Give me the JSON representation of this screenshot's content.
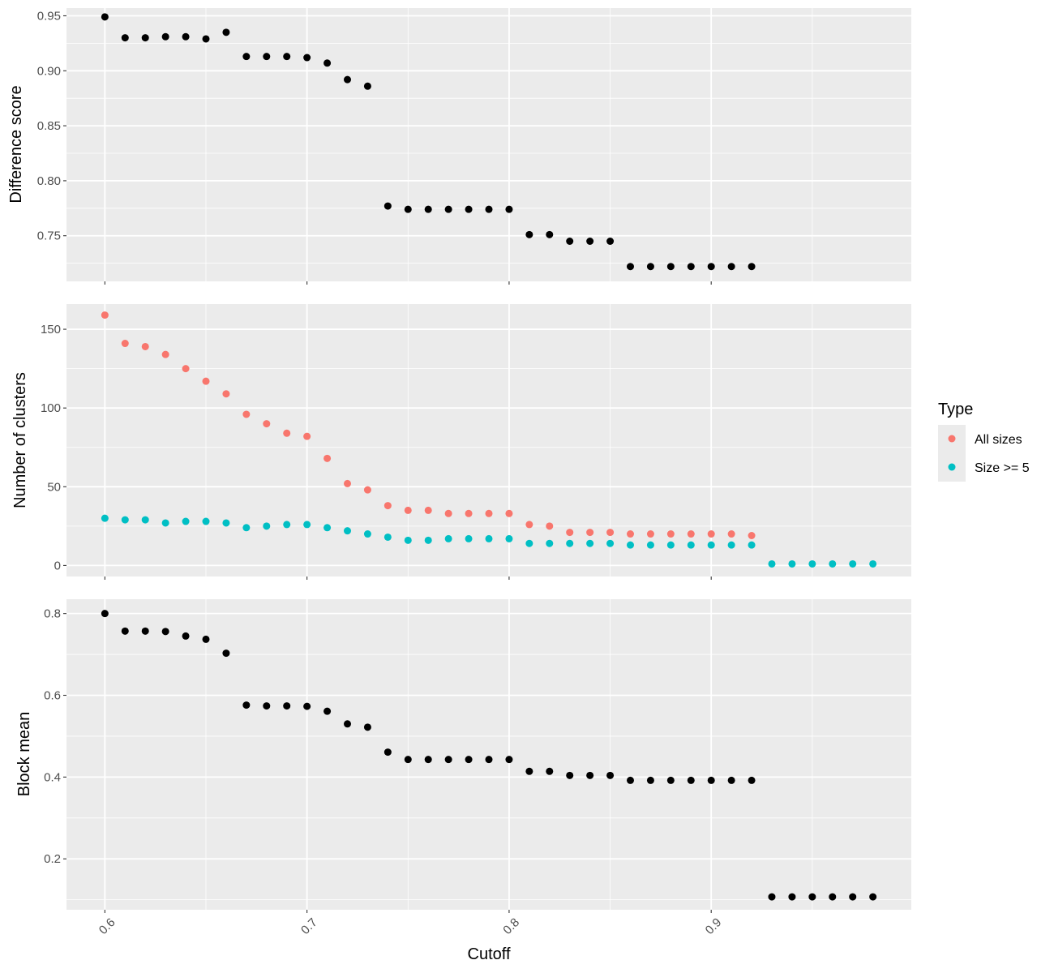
{
  "chart_data": {
    "type": "scatter",
    "xlabel": "Cutoff",
    "x_ticks": [
      "0.6",
      "0.7",
      "0.8",
      "0.9"
    ],
    "xlim": [
      0.581,
      0.999
    ],
    "grid": true,
    "legend": {
      "title": "Type",
      "placement": "right",
      "entries": [
        {
          "label": "All sizes",
          "color": "#F8766D"
        },
        {
          "label": "Size >= 5",
          "color": "#00BFC4"
        }
      ]
    },
    "panels": [
      {
        "ylabel": "Difference score",
        "ylim": [
          0.7085,
          0.957
        ],
        "y_ticks": [
          "0.75",
          "0.80",
          "0.85",
          "0.90",
          "0.95"
        ],
        "series": [
          {
            "color": "#000000",
            "x": [
              0.6,
              0.61,
              0.62,
              0.63,
              0.64,
              0.65,
              0.66,
              0.67,
              0.68,
              0.69,
              0.7,
              0.71,
              0.72,
              0.73,
              0.74,
              0.75,
              0.76,
              0.77,
              0.78,
              0.79,
              0.8,
              0.81,
              0.82,
              0.83,
              0.84,
              0.85,
              0.86,
              0.87,
              0.88,
              0.89,
              0.9,
              0.91,
              0.92
            ],
            "y": [
              0.949,
              0.93,
              0.93,
              0.931,
              0.931,
              0.929,
              0.935,
              0.913,
              0.913,
              0.913,
              0.912,
              0.907,
              0.892,
              0.886,
              0.777,
              0.774,
              0.774,
              0.774,
              0.774,
              0.774,
              0.774,
              0.751,
              0.751,
              0.745,
              0.745,
              0.745,
              0.722,
              0.722,
              0.722,
              0.722,
              0.722,
              0.722,
              0.722
            ]
          }
        ]
      },
      {
        "ylabel": "Number of clusters",
        "ylim": [
          -7,
          166
        ],
        "y_ticks": [
          "0",
          "50",
          "100",
          "150"
        ],
        "series": [
          {
            "name": "All sizes",
            "color": "#F8766D",
            "x": [
              0.6,
              0.61,
              0.62,
              0.63,
              0.64,
              0.65,
              0.66,
              0.67,
              0.68,
              0.69,
              0.7,
              0.71,
              0.72,
              0.73,
              0.74,
              0.75,
              0.76,
              0.77,
              0.78,
              0.79,
              0.8,
              0.81,
              0.82,
              0.83,
              0.84,
              0.85,
              0.86,
              0.87,
              0.88,
              0.89,
              0.9,
              0.91,
              0.92
            ],
            "y": [
              159,
              141,
              139,
              134,
              125,
              117,
              109,
              96,
              90,
              84,
              82,
              68,
              52,
              48,
              38,
              35,
              35,
              33,
              33,
              33,
              33,
              26,
              25,
              21,
              21,
              21,
              20,
              20,
              20,
              20,
              20,
              20,
              19
            ]
          },
          {
            "name": "Size >= 5",
            "color": "#00BFC4",
            "x": [
              0.6,
              0.61,
              0.62,
              0.63,
              0.64,
              0.65,
              0.66,
              0.67,
              0.68,
              0.69,
              0.7,
              0.71,
              0.72,
              0.73,
              0.74,
              0.75,
              0.76,
              0.77,
              0.78,
              0.79,
              0.8,
              0.81,
              0.82,
              0.83,
              0.84,
              0.85,
              0.86,
              0.87,
              0.88,
              0.89,
              0.9,
              0.91,
              0.92,
              0.93,
              0.94,
              0.95,
              0.96,
              0.97,
              0.98
            ],
            "y": [
              30,
              29,
              29,
              27,
              28,
              28,
              27,
              24,
              25,
              26,
              26,
              24,
              22,
              20,
              18,
              16,
              16,
              17,
              17,
              17,
              17,
              14,
              14,
              14,
              14,
              14,
              13,
              13,
              13,
              13,
              13,
              13,
              13,
              1,
              1,
              1,
              1,
              1,
              1
            ]
          }
        ]
      },
      {
        "ylabel": "Block mean",
        "ylim": [
          0.0755,
          0.835
        ],
        "y_ticks": [
          "0.2",
          "0.4",
          "0.6",
          "0.8"
        ],
        "series": [
          {
            "color": "#000000",
            "x": [
              0.6,
              0.61,
              0.62,
              0.63,
              0.64,
              0.65,
              0.66,
              0.67,
              0.68,
              0.69,
              0.7,
              0.71,
              0.72,
              0.73,
              0.74,
              0.75,
              0.76,
              0.77,
              0.78,
              0.79,
              0.8,
              0.81,
              0.82,
              0.83,
              0.84,
              0.85,
              0.86,
              0.87,
              0.88,
              0.89,
              0.9,
              0.91,
              0.92,
              0.93,
              0.94,
              0.95,
              0.96,
              0.97,
              0.98
            ],
            "y": [
              0.8,
              0.757,
              0.757,
              0.756,
              0.745,
              0.737,
              0.703,
              0.576,
              0.574,
              0.574,
              0.573,
              0.561,
              0.53,
              0.522,
              0.461,
              0.443,
              0.443,
              0.443,
              0.443,
              0.443,
              0.443,
              0.414,
              0.414,
              0.404,
              0.404,
              0.404,
              0.392,
              0.392,
              0.392,
              0.392,
              0.392,
              0.392,
              0.392,
              0.107,
              0.107,
              0.107,
              0.107,
              0.107,
              0.107
            ]
          }
        ]
      }
    ]
  }
}
